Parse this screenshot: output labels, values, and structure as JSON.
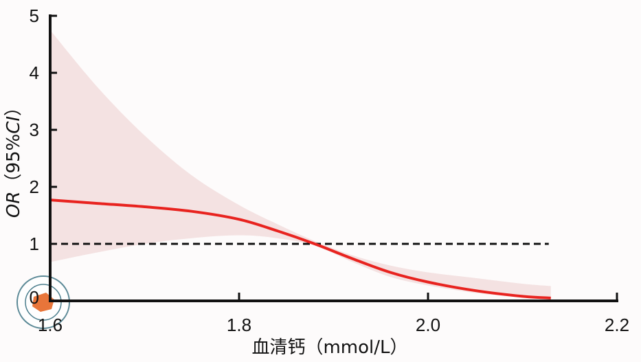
{
  "chart_data": {
    "type": "line",
    "title": "",
    "xlabel": "血清钙（mmol/L）",
    "ylabel_italic": "OR",
    "ylabel_rest": "（95%",
    "ylabel_ci": "CI",
    "ylabel_close": "）",
    "xlim": [
      1.6,
      2.2
    ],
    "ylim": [
      0,
      5
    ],
    "xticks": [
      "1.6",
      "1.8",
      "2.0",
      "2.2"
    ],
    "xtick_values": [
      1.6,
      1.8,
      2.0,
      2.2
    ],
    "yticks": [
      "0",
      "1",
      "2",
      "3",
      "4",
      "5"
    ],
    "ytick_values": [
      0,
      1,
      2,
      3,
      4,
      5
    ],
    "reference_line": 1,
    "grid": false,
    "series": [
      {
        "name": "OR",
        "x": [
          1.6,
          1.65,
          1.7,
          1.75,
          1.8,
          1.84,
          1.88,
          1.92,
          1.96,
          2.0,
          2.05,
          2.1,
          2.13
        ],
        "y": [
          1.77,
          1.71,
          1.65,
          1.57,
          1.43,
          1.23,
          1.0,
          0.74,
          0.5,
          0.33,
          0.18,
          0.08,
          0.05
        ]
      }
    ],
    "ci_upper": [
      4.75,
      3.75,
      2.9,
      2.2,
      1.68,
      1.35,
      1.05,
      0.8,
      0.62,
      0.5,
      0.4,
      0.3,
      0.26
    ],
    "ci_lower": [
      0.68,
      0.85,
      1.0,
      1.1,
      1.15,
      1.1,
      0.97,
      0.68,
      0.42,
      0.27,
      0.14,
      0.06,
      0.04
    ],
    "colors": {
      "line": "#e8231f",
      "band": "#f4e2e2",
      "reference": "#111111",
      "axis": "#111111"
    }
  }
}
